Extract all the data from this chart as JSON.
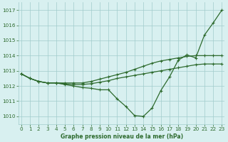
{
  "x": [
    0,
    1,
    2,
    3,
    4,
    5,
    6,
    7,
    8,
    9,
    10,
    11,
    12,
    13,
    14,
    15,
    16,
    17,
    18,
    19,
    20,
    21,
    22,
    23
  ],
  "line1_dip": [
    1012.8,
    1012.5,
    1012.3,
    1012.2,
    1012.2,
    1012.1,
    1012.0,
    1011.9,
    1011.85,
    1011.75,
    1011.75,
    1011.15,
    1010.65,
    1010.05,
    1010.0,
    1010.55,
    1011.7,
    1012.6,
    1013.7,
    1014.05,
    1013.85,
    1015.35,
    1016.15,
    1017.0
  ],
  "line2_top": [
    1012.8,
    1012.5,
    1012.3,
    1012.2,
    1012.2,
    1012.2,
    1012.2,
    1012.2,
    1012.3,
    1012.45,
    1012.6,
    1012.75,
    1012.9,
    1013.1,
    1013.3,
    1013.5,
    1013.65,
    1013.75,
    1013.85,
    1013.95,
    1014.0,
    1014.0,
    1014.0,
    1014.0
  ],
  "line3_mid": [
    1012.8,
    1012.5,
    1012.3,
    1012.2,
    1012.2,
    1012.15,
    1012.1,
    1012.1,
    1012.15,
    1012.25,
    1012.35,
    1012.5,
    1012.6,
    1012.7,
    1012.8,
    1012.9,
    1013.0,
    1013.1,
    1013.2,
    1013.3,
    1013.4,
    1013.45,
    1013.45,
    1013.45
  ],
  "bg_color": "#d8f0f0",
  "grid_color": "#a0cccc",
  "line_color": "#2d6a2d",
  "title": "Graphe pression niveau de la mer (hPa)",
  "ylim": [
    1009.5,
    1017.5
  ],
  "yticks": [
    1010,
    1011,
    1012,
    1013,
    1014,
    1015,
    1016,
    1017
  ],
  "xticks": [
    0,
    1,
    2,
    3,
    4,
    5,
    6,
    7,
    8,
    9,
    10,
    11,
    12,
    13,
    14,
    15,
    16,
    17,
    18,
    19,
    20,
    21,
    22,
    23
  ],
  "xlim": [
    -0.3,
    23.3
  ]
}
